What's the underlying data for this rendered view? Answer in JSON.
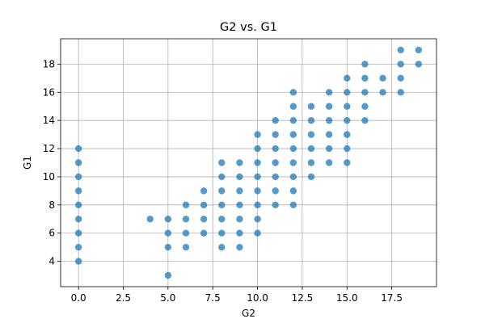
{
  "chart_data": {
    "type": "scatter",
    "title": "G2 vs. G1",
    "xlabel": "G2",
    "ylabel": "G1",
    "xlim": [
      -1,
      20
    ],
    "ylim": [
      2.2,
      19.8
    ],
    "xticks": [
      0,
      2.5,
      5,
      7.5,
      10,
      12.5,
      15,
      17.5
    ],
    "xtick_labels": [
      "0.0",
      "2.5",
      "5.0",
      "7.5",
      "10.0",
      "12.5",
      "15.0",
      "17.5"
    ],
    "yticks": [
      4,
      6,
      8,
      10,
      12,
      14,
      16,
      18
    ],
    "ytick_labels": [
      "4",
      "6",
      "8",
      "10",
      "12",
      "14",
      "16",
      "18"
    ],
    "grid": true,
    "marker_color": "#1f77b4",
    "marker_alpha": 0.75,
    "points": [
      [
        0,
        4
      ],
      [
        0,
        5
      ],
      [
        0,
        6
      ],
      [
        0,
        7
      ],
      [
        0,
        8
      ],
      [
        0,
        9
      ],
      [
        0,
        10
      ],
      [
        0,
        11
      ],
      [
        0,
        12
      ],
      [
        4,
        7
      ],
      [
        5,
        3
      ],
      [
        5,
        5
      ],
      [
        5,
        6
      ],
      [
        5,
        7
      ],
      [
        6,
        5
      ],
      [
        6,
        6
      ],
      [
        6,
        7
      ],
      [
        6,
        8
      ],
      [
        7,
        6
      ],
      [
        7,
        7
      ],
      [
        7,
        8
      ],
      [
        7,
        9
      ],
      [
        8,
        5
      ],
      [
        8,
        6
      ],
      [
        8,
        7
      ],
      [
        8,
        8
      ],
      [
        8,
        9
      ],
      [
        8,
        10
      ],
      [
        8,
        11
      ],
      [
        9,
        5
      ],
      [
        9,
        6
      ],
      [
        9,
        7
      ],
      [
        9,
        8
      ],
      [
        9,
        9
      ],
      [
        9,
        10
      ],
      [
        9,
        11
      ],
      [
        10,
        6
      ],
      [
        10,
        7
      ],
      [
        10,
        8
      ],
      [
        10,
        9
      ],
      [
        10,
        10
      ],
      [
        10,
        11
      ],
      [
        10,
        12
      ],
      [
        10,
        13
      ],
      [
        11,
        8
      ],
      [
        11,
        9
      ],
      [
        11,
        10
      ],
      [
        11,
        11
      ],
      [
        11,
        12
      ],
      [
        11,
        13
      ],
      [
        11,
        14
      ],
      [
        12,
        8
      ],
      [
        12,
        9
      ],
      [
        12,
        10
      ],
      [
        12,
        11
      ],
      [
        12,
        12
      ],
      [
        12,
        13
      ],
      [
        12,
        14
      ],
      [
        12,
        15
      ],
      [
        12,
        16
      ],
      [
        13,
        10
      ],
      [
        13,
        11
      ],
      [
        13,
        12
      ],
      [
        13,
        13
      ],
      [
        13,
        14
      ],
      [
        13,
        15
      ],
      [
        14,
        11
      ],
      [
        14,
        12
      ],
      [
        14,
        13
      ],
      [
        14,
        14
      ],
      [
        14,
        15
      ],
      [
        14,
        16
      ],
      [
        15,
        11
      ],
      [
        15,
        12
      ],
      [
        15,
        13
      ],
      [
        15,
        14
      ],
      [
        15,
        15
      ],
      [
        15,
        16
      ],
      [
        15,
        17
      ],
      [
        16,
        14
      ],
      [
        16,
        15
      ],
      [
        16,
        16
      ],
      [
        16,
        17
      ],
      [
        16,
        18
      ],
      [
        17,
        16
      ],
      [
        17,
        17
      ],
      [
        18,
        16
      ],
      [
        18,
        17
      ],
      [
        18,
        18
      ],
      [
        18,
        19
      ],
      [
        19,
        18
      ],
      [
        19,
        19
      ]
    ]
  }
}
